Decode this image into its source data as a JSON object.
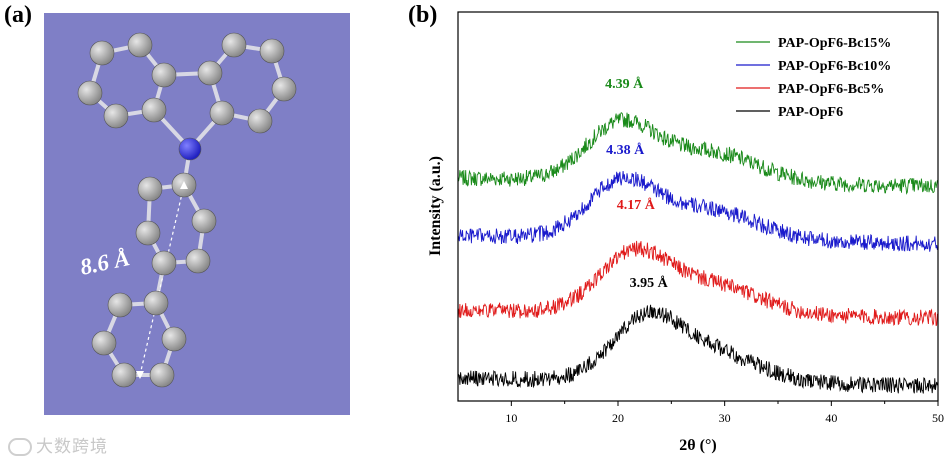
{
  "panels": {
    "a": "(a)",
    "b": "(b)"
  },
  "molecule": {
    "distance_label": "8.6 Å",
    "background_color": "#7f7fc6",
    "carbon_color": "#8a8a8a",
    "nitrogen_color": "#2020c0"
  },
  "watermark": "大数跨境",
  "chart_data": {
    "type": "line",
    "xlabel": "2θ (°)",
    "ylabel": "Intensity (a.u.)",
    "xlim": [
      5,
      50
    ],
    "xticks": [
      10,
      20,
      30,
      40,
      50
    ],
    "grid": false,
    "legend_position": "top-right",
    "series": [
      {
        "name": "PAP-OpF6-Bc15%",
        "color": "#1a8a1a",
        "offset": 3,
        "peak_label": "4.39 Å",
        "peak_x": 20.2
      },
      {
        "name": "PAP-OpF6-Bc10%",
        "color": "#1a1acc",
        "offset": 2,
        "peak_label": "4.38 Å",
        "peak_x": 20.3
      },
      {
        "name": "PAP-OpF6-Bc5%",
        "color": "#e01a1a",
        "offset": 1,
        "peak_label": "4.17 Å",
        "peak_x": 21.3
      },
      {
        "name": "PAP-OpF6",
        "color": "#000000",
        "offset": 0,
        "peak_label": "3.95 Å",
        "peak_x": 22.5
      }
    ]
  }
}
